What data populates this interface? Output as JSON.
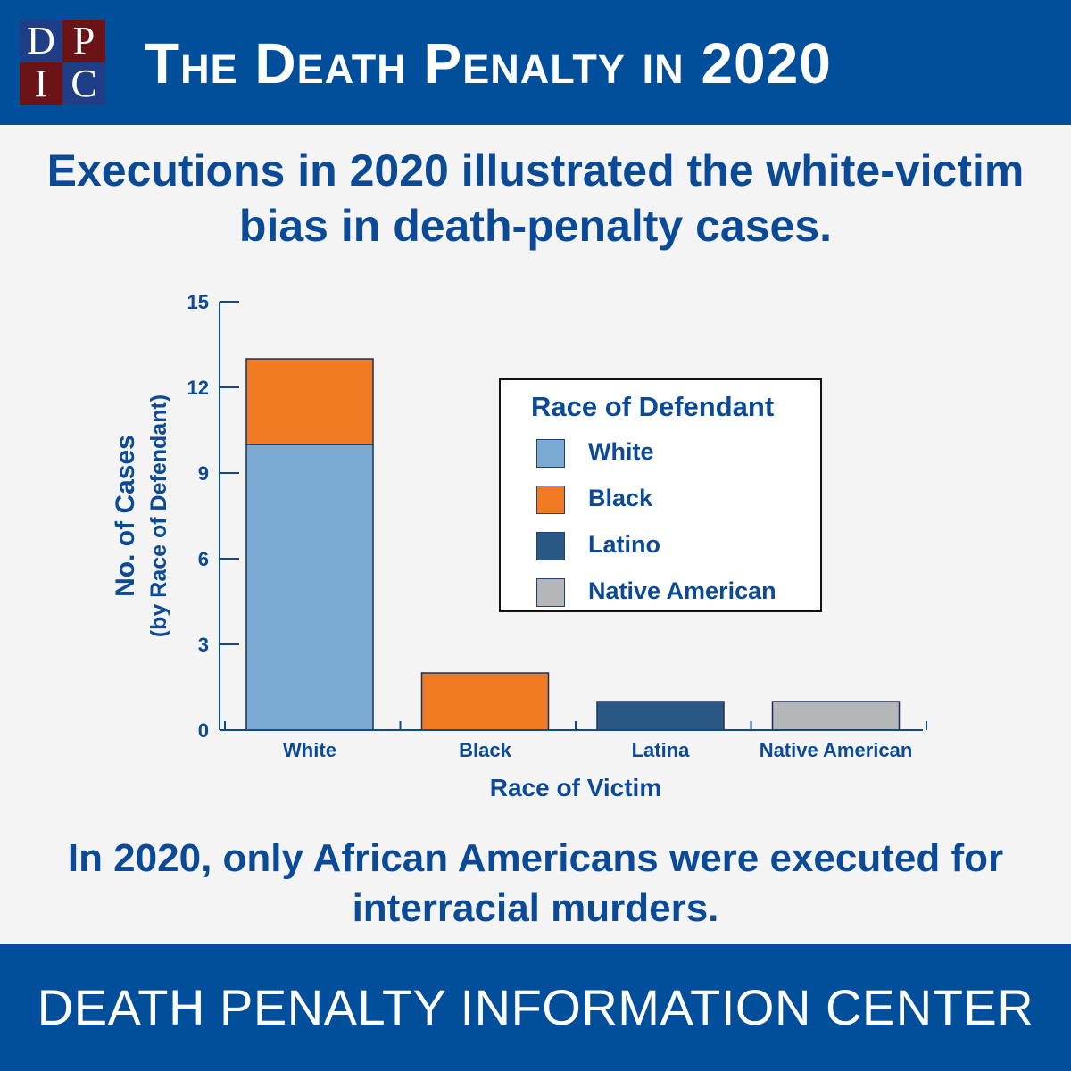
{
  "header": {
    "title": "The Death Penalty in 2020",
    "logo_letters": [
      "D",
      "P",
      "I",
      "C"
    ]
  },
  "headline": "Executions in 2020 illustrated the white-victim bias in death-penalty cases.",
  "footnote": "In 2020, only African Americans were executed for interracial murders.",
  "footer": {
    "title": "DEATH PENALTY INFORMATION CENTER"
  },
  "colors": {
    "white": "#7aaad1",
    "black": "#f07b22",
    "latino": "#2a5885",
    "native_american": "#b4b6b8",
    "text": "#0b4a97",
    "header_bg": "#014e9a"
  },
  "chart_data": {
    "type": "bar",
    "stacked": true,
    "categories": [
      "White",
      "Black",
      "Latina",
      "Native American"
    ],
    "series": [
      {
        "name": "White",
        "values": [
          10,
          0,
          0,
          0
        ]
      },
      {
        "name": "Black",
        "values": [
          3,
          2,
          0,
          0
        ]
      },
      {
        "name": "Latino",
        "values": [
          0,
          0,
          1,
          0
        ]
      },
      {
        "name": "Native American",
        "values": [
          0,
          0,
          0,
          1
        ]
      }
    ],
    "ylim": [
      0,
      15
    ],
    "yticks": [
      0,
      3,
      6,
      9,
      12,
      15
    ],
    "xlabel": "Race of Victim",
    "ylabel": "No. of Cases",
    "ylabel_sub": "(by Race of Defendant)",
    "legend_title": "Race of Defendant",
    "legend_position": "right",
    "grid": false
  }
}
